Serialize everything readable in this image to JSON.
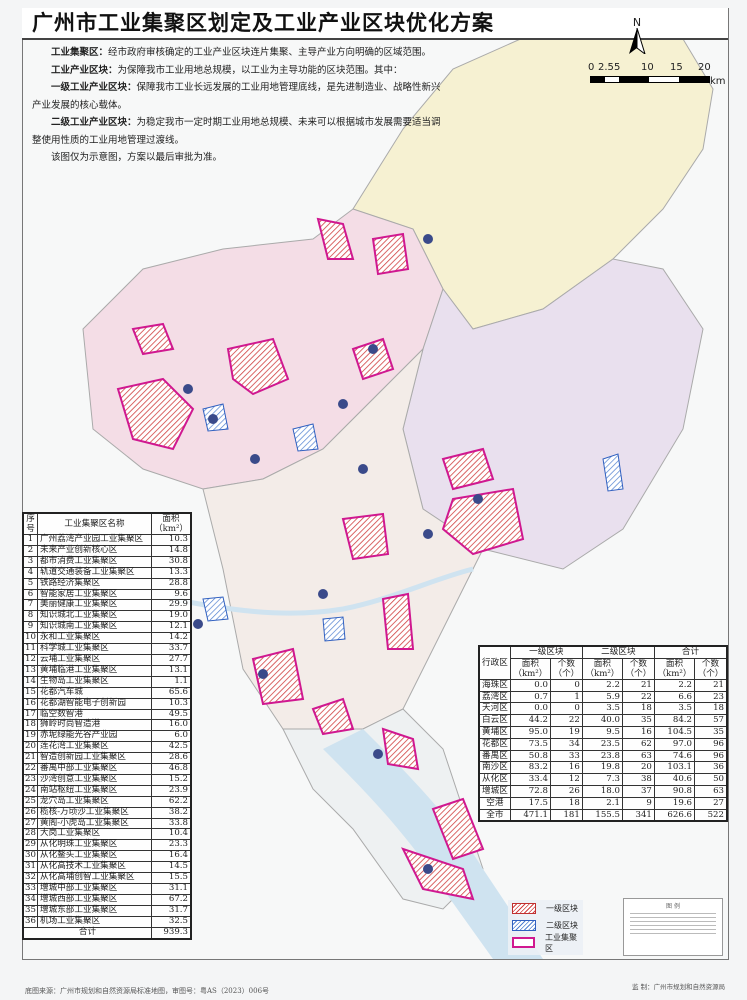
{
  "title": "广州市工业集聚区划定及工业产业区块优化方案",
  "description": [
    {
      "term": "工业集聚区：",
      "text": "经市政府审核确定的工业产业区块连片集聚、主导产业方向明确的区域范围。"
    },
    {
      "term": "工业产业区块：",
      "text": "为保障我市工业用地总规模，以工业为主导功能的区块范围。其中："
    },
    {
      "term": "一级工业产业区块：",
      "text": "保障我市工业长远发展的工业用地管理底线，是先进制造业、战略性新兴产业发展的核心载体。"
    },
    {
      "term": "二级工业产业区块：",
      "text": "为稳定我市一定时期工业用地总规模、未来可以根据城市发展需要适当调整使用性质的工业用地管理过渡线。"
    },
    {
      "term": "",
      "text": "该图仅为示意图，方案以最后审批为准。"
    }
  ],
  "north_arrow": {
    "label": "N",
    "icon": "north-arrow-icon"
  },
  "scale_bar": {
    "ticks": [
      "0",
      "2.5",
      "5",
      "10",
      "15",
      "20"
    ],
    "unit": "km"
  },
  "cluster_table": {
    "headers": {
      "no": "序号",
      "name": "工业集聚区名称",
      "area": "面积（km²）"
    },
    "rows": [
      [
        "1",
        "广州荔湾产业园工业集聚区",
        "10.3"
      ],
      [
        "2",
        "未来产业创新核心区",
        "14.8"
      ],
      [
        "3",
        "都市消费工业集聚区",
        "30.8"
      ],
      [
        "4",
        "轨道交通装备工业集聚区",
        "13.3"
      ],
      [
        "5",
        "铁路经济集聚区",
        "28.8"
      ],
      [
        "6",
        "智能家居工业集聚区",
        "9.6"
      ],
      [
        "7",
        "美丽健康工业集聚区",
        "29.9"
      ],
      [
        "8",
        "知识城北工业集聚区",
        "19.0"
      ],
      [
        "9",
        "知识城南工业集聚区",
        "12.1"
      ],
      [
        "10",
        "永和工业集聚区",
        "14.2"
      ],
      [
        "11",
        "科学城工业集聚区",
        "33.7"
      ],
      [
        "12",
        "云埔工业集聚区",
        "27.7"
      ],
      [
        "13",
        "黄埔临港工业集聚区",
        "13.1"
      ],
      [
        "14",
        "生物岛工业集聚区",
        "1.1"
      ],
      [
        "15",
        "花都汽车城",
        "65.6"
      ],
      [
        "16",
        "花都湖智能电子创新园",
        "10.3"
      ],
      [
        "17",
        "临空数智港",
        "49.5"
      ],
      [
        "18",
        "狮岭时尚智造港",
        "16.0"
      ],
      [
        "19",
        "赤坭绿能光谷产业园",
        "6.0"
      ],
      [
        "20",
        "莲花湾工业集聚区",
        "42.5"
      ],
      [
        "21",
        "智造创新园工业集聚区",
        "28.6"
      ],
      [
        "22",
        "番禺中部工业集聚区",
        "46.8"
      ],
      [
        "23",
        "沙湾创意工业集聚区",
        "15.2"
      ],
      [
        "24",
        "南站枢纽工业集聚区",
        "23.9"
      ],
      [
        "25",
        "龙穴岛工业集聚区",
        "62.2"
      ],
      [
        "26",
        "榄核-万顷沙工业集聚区",
        "38.2"
      ],
      [
        "27",
        "黄阁-小虎岛工业集聚区",
        "33.8"
      ],
      [
        "28",
        "大岗工业集聚区",
        "10.4"
      ],
      [
        "29",
        "从化明珠工业集聚区",
        "23.3"
      ],
      [
        "30",
        "从化鳌头工业集聚区",
        "16.4"
      ],
      [
        "31",
        "从化高技术工业集聚区",
        "14.5"
      ],
      [
        "32",
        "从化高埔创智工业集聚区",
        "15.5"
      ],
      [
        "33",
        "增城中部工业集聚区",
        "31.1"
      ],
      [
        "34",
        "增城西部工业集聚区",
        "67.2"
      ],
      [
        "35",
        "增城东部工业集聚区",
        "31.7"
      ],
      [
        "36",
        "机场工业集聚区",
        "32.5"
      ]
    ],
    "total": {
      "label": "合计",
      "value": "939.3"
    }
  },
  "district_table": {
    "headers": {
      "district": "行政区",
      "groups": [
        "一级区块",
        "二级区块",
        "合计"
      ],
      "area": "面积（km²）",
      "count": "个数（个）"
    },
    "rows": [
      [
        "海珠区",
        "0.0",
        "0",
        "2.2",
        "21",
        "2.2",
        "21"
      ],
      [
        "荔湾区",
        "0.7",
        "1",
        "5.9",
        "22",
        "6.6",
        "23"
      ],
      [
        "天河区",
        "0.0",
        "0",
        "3.5",
        "18",
        "3.5",
        "18"
      ],
      [
        "白云区",
        "44.2",
        "22",
        "40.0",
        "35",
        "84.2",
        "57"
      ],
      [
        "黄埔区",
        "95.0",
        "19",
        "9.5",
        "16",
        "104.5",
        "35"
      ],
      [
        "花都区",
        "73.5",
        "34",
        "23.5",
        "62",
        "97.0",
        "96"
      ],
      [
        "番禺区",
        "50.8",
        "33",
        "23.8",
        "63",
        "74.6",
        "96"
      ],
      [
        "南沙区",
        "83.2",
        "16",
        "19.8",
        "20",
        "103.1",
        "36"
      ],
      [
        "从化区",
        "33.4",
        "12",
        "7.3",
        "38",
        "40.6",
        "50"
      ],
      [
        "增城区",
        "72.8",
        "26",
        "18.0",
        "37",
        "90.8",
        "63"
      ],
      [
        "空港",
        "17.5",
        "18",
        "2.1",
        "9",
        "19.6",
        "27"
      ],
      [
        "全市",
        "471.1",
        "181",
        "155.5",
        "341",
        "626.6",
        "522"
      ]
    ]
  },
  "legend": {
    "items": [
      {
        "label": "一级区块",
        "color": "#d04040"
      },
      {
        "label": "二级区块",
        "color": "#5080d0"
      },
      {
        "label": "工业集聚区",
        "color": "#d01890"
      }
    ]
  },
  "inset_legend_title": "图 例",
  "maker": "监 制：广州市规划和自然资源局",
  "source": "底图来源：广州市规划和自然资源局标准地图，审图号：粤AS（2023）006号",
  "colors": {
    "conghua": "#f6f1d2",
    "huadu": "#f4dde6",
    "zengcheng": "#e9e0ee",
    "center": "#f3ece8",
    "water": "#cfe3f0",
    "cluster_outline": "#d01890"
  }
}
